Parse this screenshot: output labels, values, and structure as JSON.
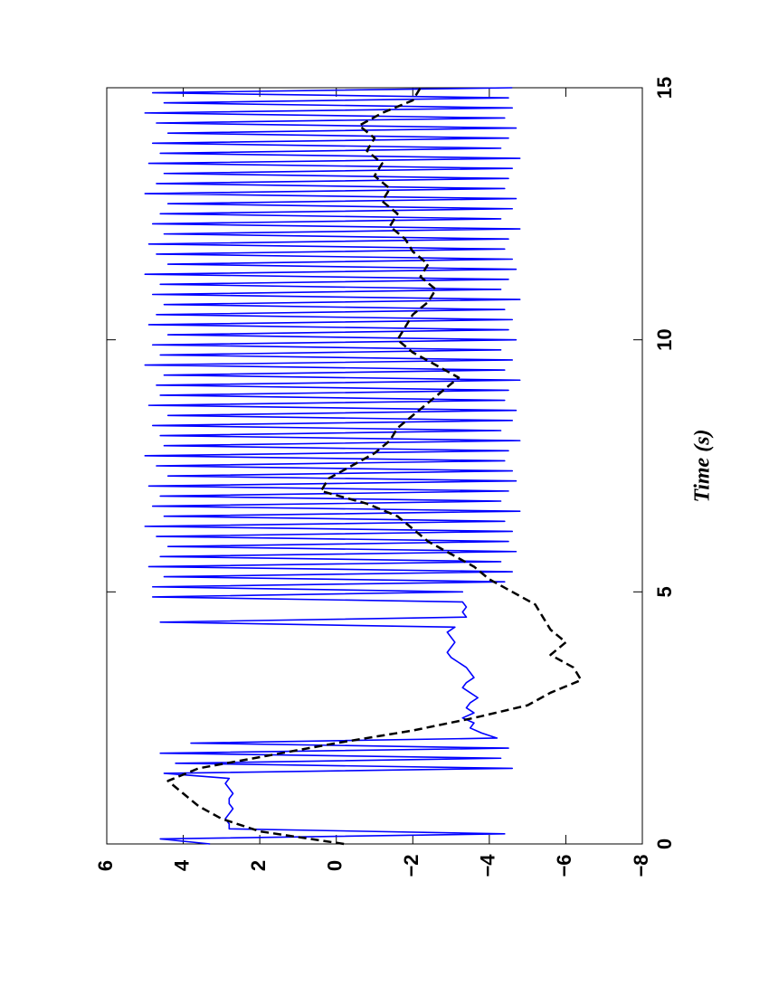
{
  "chart_data": {
    "type": "line",
    "xlabel": "Time (s)",
    "xlim": [
      0,
      15
    ],
    "xticks": [
      0,
      5,
      10,
      15
    ],
    "ylim": [
      -8,
      6
    ],
    "yticks": [
      6,
      4,
      2,
      0,
      {
        "value": -2,
        "label": "−2"
      },
      {
        "value": -4,
        "label": "−4"
      },
      {
        "value": -6,
        "label": "−6"
      },
      {
        "value": -8,
        "label": "−8"
      }
    ],
    "orientation": "rotated",
    "series": [
      {
        "color": "#0000ff",
        "dash": "solid",
        "x": [
          0,
          0.1,
          0.2,
          0.3,
          0.4,
          0.5,
          0.6,
          0.7,
          0.8,
          0.9,
          1,
          1.1,
          1.2,
          1.3,
          1.4,
          1.5,
          1.6,
          1.7,
          1.8,
          1.9,
          2,
          2.1,
          2.2,
          2.3,
          2.4,
          2.5,
          2.6,
          2.7,
          2.8,
          2.9,
          3,
          3.1,
          3.2,
          3.3,
          3.4,
          3.5,
          3.6,
          3.7,
          3.8,
          3.9,
          4,
          4.1,
          4.2,
          4.3,
          4.4,
          4.5,
          4.6,
          4.7,
          4.8,
          4.9,
          5,
          5.1,
          5.2,
          5.3,
          5.4,
          5.5,
          5.6,
          5.7,
          5.8,
          5.9,
          6,
          6.1,
          6.2,
          6.3,
          6.4,
          6.5,
          6.6,
          6.7,
          6.8,
          6.9,
          7,
          7.1,
          7.2,
          7.3,
          7.4,
          7.5,
          7.6,
          7.7,
          7.8,
          7.9,
          8,
          8.1,
          8.2,
          8.3,
          8.4,
          8.5,
          8.6,
          8.7,
          8.8,
          8.9,
          9,
          9.1,
          9.2,
          9.3,
          9.4,
          9.5,
          9.6,
          9.7,
          9.8,
          9.9,
          10,
          10.1,
          10.2,
          10.3,
          10.4,
          10.5,
          10.6,
          10.7,
          10.8,
          10.9,
          11,
          11.1,
          11.2,
          11.3,
          11.4,
          11.5,
          11.6,
          11.7,
          11.8,
          11.9,
          12,
          12.1,
          12.2,
          12.3,
          12.4,
          12.5,
          12.6,
          12.7,
          12.8,
          12.9,
          13,
          13.1,
          13.2,
          13.3,
          13.4,
          13.5,
          13.6,
          13.7,
          13.8,
          13.9,
          14,
          14.1,
          14.2,
          14.3,
          14.4,
          14.5,
          14.6,
          14.7,
          14.8,
          14.9,
          15
        ],
        "values": [
          3.3,
          4.6,
          -4.4,
          2.8,
          2.8,
          2.9,
          2.8,
          2.7,
          2.8,
          2.8,
          2.7,
          2.8,
          2.9,
          2.8,
          4.5,
          -4.6,
          4.2,
          -4.3,
          4.6,
          -4.5,
          3.8,
          -4.2,
          -3.8,
          -3.5,
          -3.6,
          -3.3,
          -3.6,
          -3.4,
          -3.5,
          -3.7,
          -3.5,
          -3.3,
          -3.4,
          -3.6,
          -3.5,
          -3.4,
          -3.2,
          -3.0,
          -2.9,
          -3.0,
          -3.1,
          -3.0,
          -2.9,
          -3.1,
          4.6,
          -3.4,
          -3.3,
          -3.4,
          -3.3,
          4.8,
          -3.3,
          4.8,
          -4.4,
          4.5,
          -4.6,
          4.9,
          -4.3,
          4.6,
          -4.7,
          4.4,
          -4.5,
          4.7,
          -4.6,
          5.0,
          -4.4,
          4.5,
          -4.8,
          4.8,
          -4.3,
          4.6,
          -4.5,
          4.9,
          -4.7,
          4.4,
          -4.6,
          4.7,
          -4.4,
          5.0,
          -4.5,
          4.5,
          -4.8,
          4.6,
          -4.3,
          4.8,
          -4.6,
          4.4,
          -4.7,
          4.9,
          -4.4,
          4.6,
          -4.5,
          4.7,
          -4.8,
          4.5,
          -4.4,
          5.0,
          -4.6,
          4.6,
          -4.3,
          4.8,
          -4.7,
          4.4,
          -4.5,
          4.9,
          -4.6,
          4.7,
          -4.4,
          4.5,
          -4.8,
          4.8,
          -4.3,
          4.6,
          -4.5,
          5.0,
          -4.7,
          4.4,
          -4.6,
          4.7,
          -4.4,
          4.9,
          -4.5,
          4.5,
          -4.8,
          4.8,
          -4.3,
          4.6,
          -4.6,
          4.4,
          -4.7,
          5.0,
          -4.4,
          4.7,
          -4.5,
          4.5,
          -4.6,
          4.9,
          -4.8,
          4.6,
          -4.3,
          4.8,
          -4.5,
          4.4,
          -4.7,
          4.7,
          -4.4,
          5.0,
          -4.6,
          4.5,
          -4.5,
          4.8,
          -4.6
        ]
      },
      {
        "color": "#000000",
        "dash": "dashed",
        "x": [
          0,
          0.25,
          0.5,
          0.75,
          1,
          1.25,
          1.5,
          1.75,
          2,
          2.25,
          2.5,
          2.75,
          3,
          3.25,
          3.5,
          3.75,
          4,
          4.25,
          4.5,
          4.75,
          5,
          5.25,
          5.5,
          5.75,
          6,
          6.25,
          6.5,
          6.75,
          7,
          7.25,
          7.5,
          7.75,
          8,
          8.25,
          8.5,
          8.75,
          9,
          9.25,
          9.5,
          9.75,
          10,
          10.25,
          10.5,
          10.75,
          11,
          11.25,
          11.5,
          11.75,
          12,
          12.25,
          12.5,
          12.75,
          13,
          13.25,
          13.5,
          13.75,
          14,
          14.25,
          14.5,
          14.75,
          15
        ],
        "values": [
          -0.2,
          2.0,
          3.0,
          3.6,
          4.0,
          4.4,
          3.6,
          1.8,
          0.0,
          -2.0,
          -3.6,
          -5.0,
          -5.6,
          -6.4,
          -6.2,
          -5.6,
          -6.0,
          -5.6,
          -5.4,
          -5.2,
          -4.6,
          -4.0,
          -3.6,
          -3.0,
          -2.4,
          -2.0,
          -1.6,
          -0.8,
          0.4,
          0.2,
          -0.4,
          -1.0,
          -1.4,
          -1.6,
          -2.0,
          -2.4,
          -2.8,
          -3.2,
          -2.6,
          -2.0,
          -1.6,
          -1.8,
          -2.0,
          -2.4,
          -2.6,
          -2.2,
          -2.4,
          -2.0,
          -1.8,
          -1.4,
          -1.6,
          -1.2,
          -1.4,
          -1.0,
          -1.2,
          -0.8,
          -1.0,
          -0.6,
          -1.2,
          -2.0,
          -2.2
        ]
      }
    ]
  }
}
